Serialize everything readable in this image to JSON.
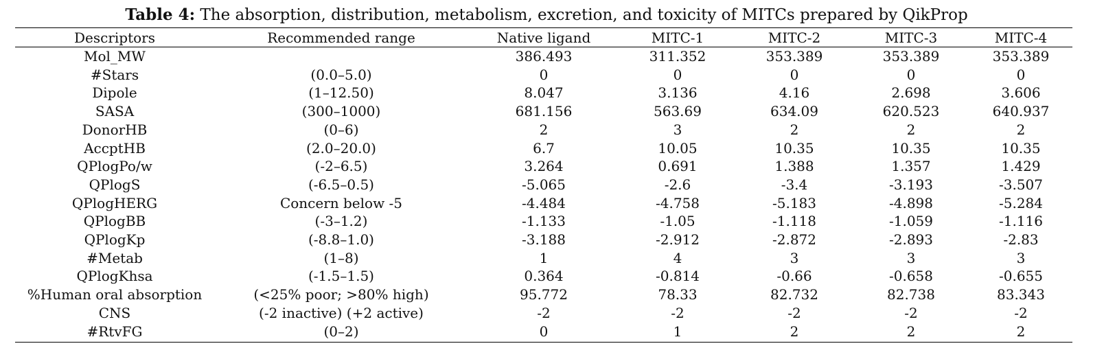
{
  "caption": {
    "label": "Table 4:",
    "text": " The absorption, distribution, metabolism, excretion, and toxicity of MITCs prepared by QikProp"
  },
  "table": {
    "headers": [
      "Descriptors",
      "Recommended range",
      "Native ligand",
      "MITC-1",
      "MITC-2",
      "MITC-3",
      "MITC-4"
    ],
    "rows": [
      [
        "Mol_MW",
        "",
        "386.493",
        "311.352",
        "353.389",
        "353.389",
        "353.389"
      ],
      [
        "#Stars",
        "(0.0–5.0)",
        "0",
        "0",
        "0",
        "0",
        "0"
      ],
      [
        "Dipole",
        "(1–12.50)",
        "8.047",
        "3.136",
        "4.16",
        "2.698",
        "3.606"
      ],
      [
        "SASA",
        "(300–1000)",
        "681.156",
        "563.69",
        "634.09",
        "620.523",
        "640.937"
      ],
      [
        "DonorHB",
        "(0–6)",
        "2",
        "3",
        "2",
        "2",
        "2"
      ],
      [
        "AccptHB",
        "(2.0–20.0)",
        "6.7",
        "10.05",
        "10.35",
        "10.35",
        "10.35"
      ],
      [
        "QPlogPo/w",
        "(-2–6.5)",
        "3.264",
        "0.691",
        "1.388",
        "1.357",
        "1.429"
      ],
      [
        "QPlogS",
        "(-6.5–0.5)",
        "-5.065",
        "-2.6",
        "-3.4",
        "-3.193",
        "-3.507"
      ],
      [
        "QPlogHERG",
        "Concern below -5",
        "-4.484",
        "-4.758",
        "-5.183",
        "-4.898",
        "-5.284"
      ],
      [
        "QPlogBB",
        "(-3–1.2)",
        "-1.133",
        "-1.05",
        "-1.118",
        "-1.059",
        "-1.116"
      ],
      [
        "QPlogKp",
        "(-8.8–1.0)",
        "-3.188",
        "-2.912",
        "-2.872",
        "-2.893",
        "-2.83"
      ],
      [
        "#Metab",
        "(1–8)",
        "1",
        "4",
        "3",
        "3",
        "3"
      ],
      [
        "QPlogKhsa",
        "(-1.5–1.5)",
        "0.364",
        "-0.814",
        "-0.66",
        "-0.658",
        "-0.655"
      ],
      [
        "%Human oral absorption",
        "(<25% poor; >80% high)",
        "95.772",
        "78.33",
        "82.732",
        "82.738",
        "83.343"
      ],
      [
        "CNS",
        "(-2 inactive) (+2 active)",
        "-2",
        "-2",
        "-2",
        "-2",
        "-2"
      ],
      [
        "#RtvFG",
        "(0–2)",
        "0",
        "1",
        "2",
        "2",
        "2"
      ]
    ]
  }
}
